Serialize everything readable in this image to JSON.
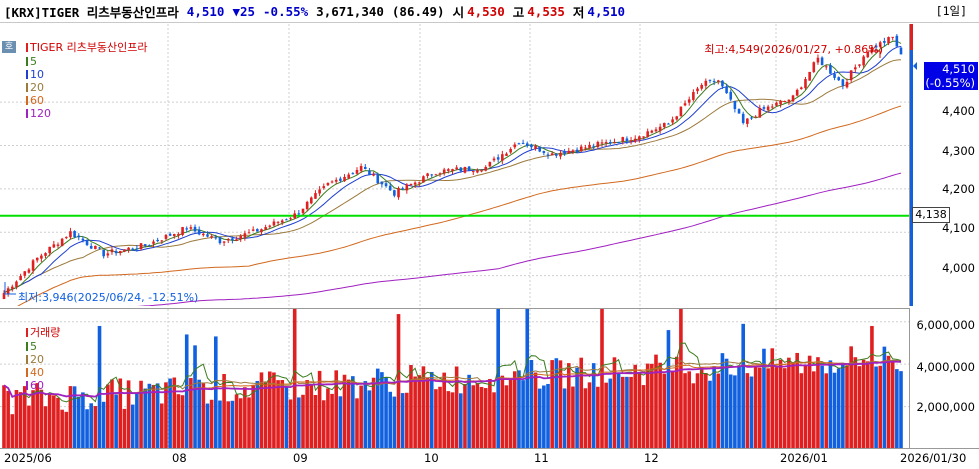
{
  "title_bar": {
    "name": "[KRX]TIGER 리츠부동산인프라",
    "price": "4,510",
    "change": "▼25",
    "change_pct": "-0.55%",
    "volume": "3,671,340",
    "volume_ratio": "(86.49)",
    "open_label": "시",
    "open": "4,530",
    "high_label": "고",
    "high": "4,535",
    "low_label": "저",
    "low": "4,510",
    "period": "[1일]"
  },
  "price_panel": {
    "legend_title": "TIGER 리츠부동산인프라",
    "ma_labels": [
      "5",
      "10",
      "20",
      "60",
      "120"
    ],
    "hoga": "호",
    "high_annotation": "최고:4,549(2026/01/27, +0.86%)",
    "low_annotation": "최저:3,946(2025/06/24, -12.51%)",
    "current_price": "4,510",
    "current_change": "(-0.55%)",
    "level_line": "4,138",
    "y_ticks": [
      "4,400",
      "4,300",
      "4,200",
      "4,100",
      "4,000"
    ]
  },
  "volume_panel": {
    "legend_title": "거래량",
    "ma_labels": [
      "5",
      "20",
      "40",
      "60"
    ],
    "y_ticks": [
      "6,000,000",
      "4,000,000",
      "2,000,000"
    ]
  },
  "x_axis": {
    "labels": [
      "2025/06",
      "08",
      "09",
      "10",
      "11",
      "12",
      "2026/01",
      "2026/01/30"
    ]
  },
  "colors": {
    "up": "#e02020",
    "down": "#1060e0",
    "ma5": "#3a7d1e",
    "ma10": "#1f3fcf",
    "ma20": "#9c7a3c",
    "ma60": "#d2691e",
    "ma120": "#a020c0",
    "level_line": "#00e000"
  },
  "chart_data": {
    "type": "candlestick",
    "series": [
      {
        "name": "TIGER 리츠부동산인프라",
        "pattern": "price",
        "start": 3946,
        "end": 4510,
        "high": 4549,
        "low": 3946
      },
      {
        "name": "거래량",
        "pattern": "volume",
        "last": 3671340
      }
    ],
    "ylim": [
      3930,
      4580
    ],
    "volume_ylim": [
      0,
      6600000
    ]
  }
}
